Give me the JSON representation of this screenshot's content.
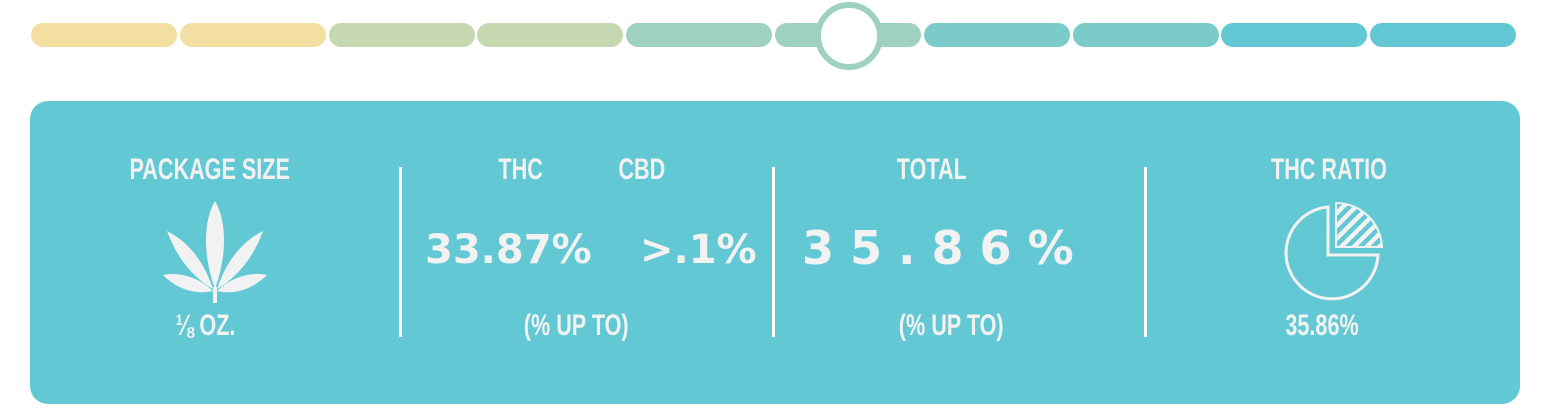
{
  "slider": {
    "segments": [
      "#f3dfa1",
      "#f3dfa1",
      "#c5d8b0",
      "#c5d8b0",
      "#9fd1bf",
      "#9fd1bf",
      "#7bcbcb",
      "#7bcbcb",
      "#62c8d3",
      "#62c8d3"
    ],
    "selected_index": 5,
    "knob_color": "#9fd1bf"
  },
  "card": {
    "bg": "#62c8d3",
    "package": {
      "label": "PACKAGE SIZE",
      "icon": "cannabis-leaf-icon",
      "value": "⅛ OZ."
    },
    "thc": {
      "label": "THC",
      "value": "33.87%"
    },
    "cbd": {
      "label": "CBD",
      "value": ">.1%"
    },
    "thc_cbd_note": "(% UP TO)",
    "total": {
      "label": "TOTAL",
      "value": "3 5 . 8 6 %",
      "note": "(% UP TO)"
    },
    "ratio": {
      "label": "THC RATIO",
      "icon": "pie-chart-icon",
      "value": "35.86%"
    }
  }
}
